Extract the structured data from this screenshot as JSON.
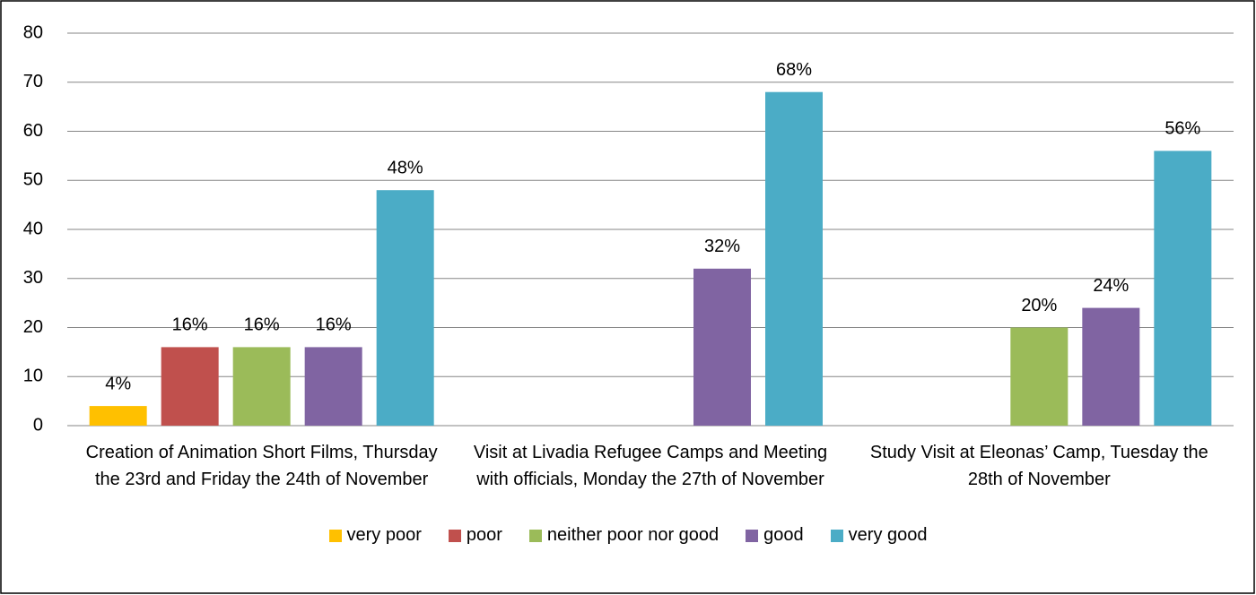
{
  "chart_data": {
    "type": "bar",
    "categories": [
      "Creation of Animation Short Films, Thursday the 23rd and Friday the 24th of November",
      "Visit at Livadia Refugee Camps and Meeting with officials, Monday the 27th of November",
      "Study Visit at Eleonas’ Camp, Tuesday the 28th of November"
    ],
    "series": [
      {
        "name": "very poor",
        "color": "#ffc000",
        "values": [
          4,
          null,
          null
        ],
        "value_labels": [
          "4%",
          null,
          null
        ]
      },
      {
        "name": "poor",
        "color": "#c0504d",
        "values": [
          16,
          null,
          null
        ],
        "value_labels": [
          "16%",
          null,
          null
        ]
      },
      {
        "name": "neither poor nor good",
        "color": "#9bbb59",
        "values": [
          16,
          null,
          20
        ],
        "value_labels": [
          "16%",
          null,
          "20%"
        ]
      },
      {
        "name": "good",
        "color": "#8064a2",
        "values": [
          16,
          32,
          24
        ],
        "value_labels": [
          "16%",
          "32%",
          "24%"
        ]
      },
      {
        "name": "very good",
        "color": "#4bacc6",
        "values": [
          48,
          68,
          56
        ],
        "value_labels": [
          "48%",
          "68%",
          "56%"
        ]
      }
    ],
    "ylim": [
      0,
      80
    ],
    "yticks": [
      0,
      10,
      20,
      30,
      40,
      50,
      60,
      70,
      80
    ],
    "grid": true,
    "legend": "bottom"
  }
}
